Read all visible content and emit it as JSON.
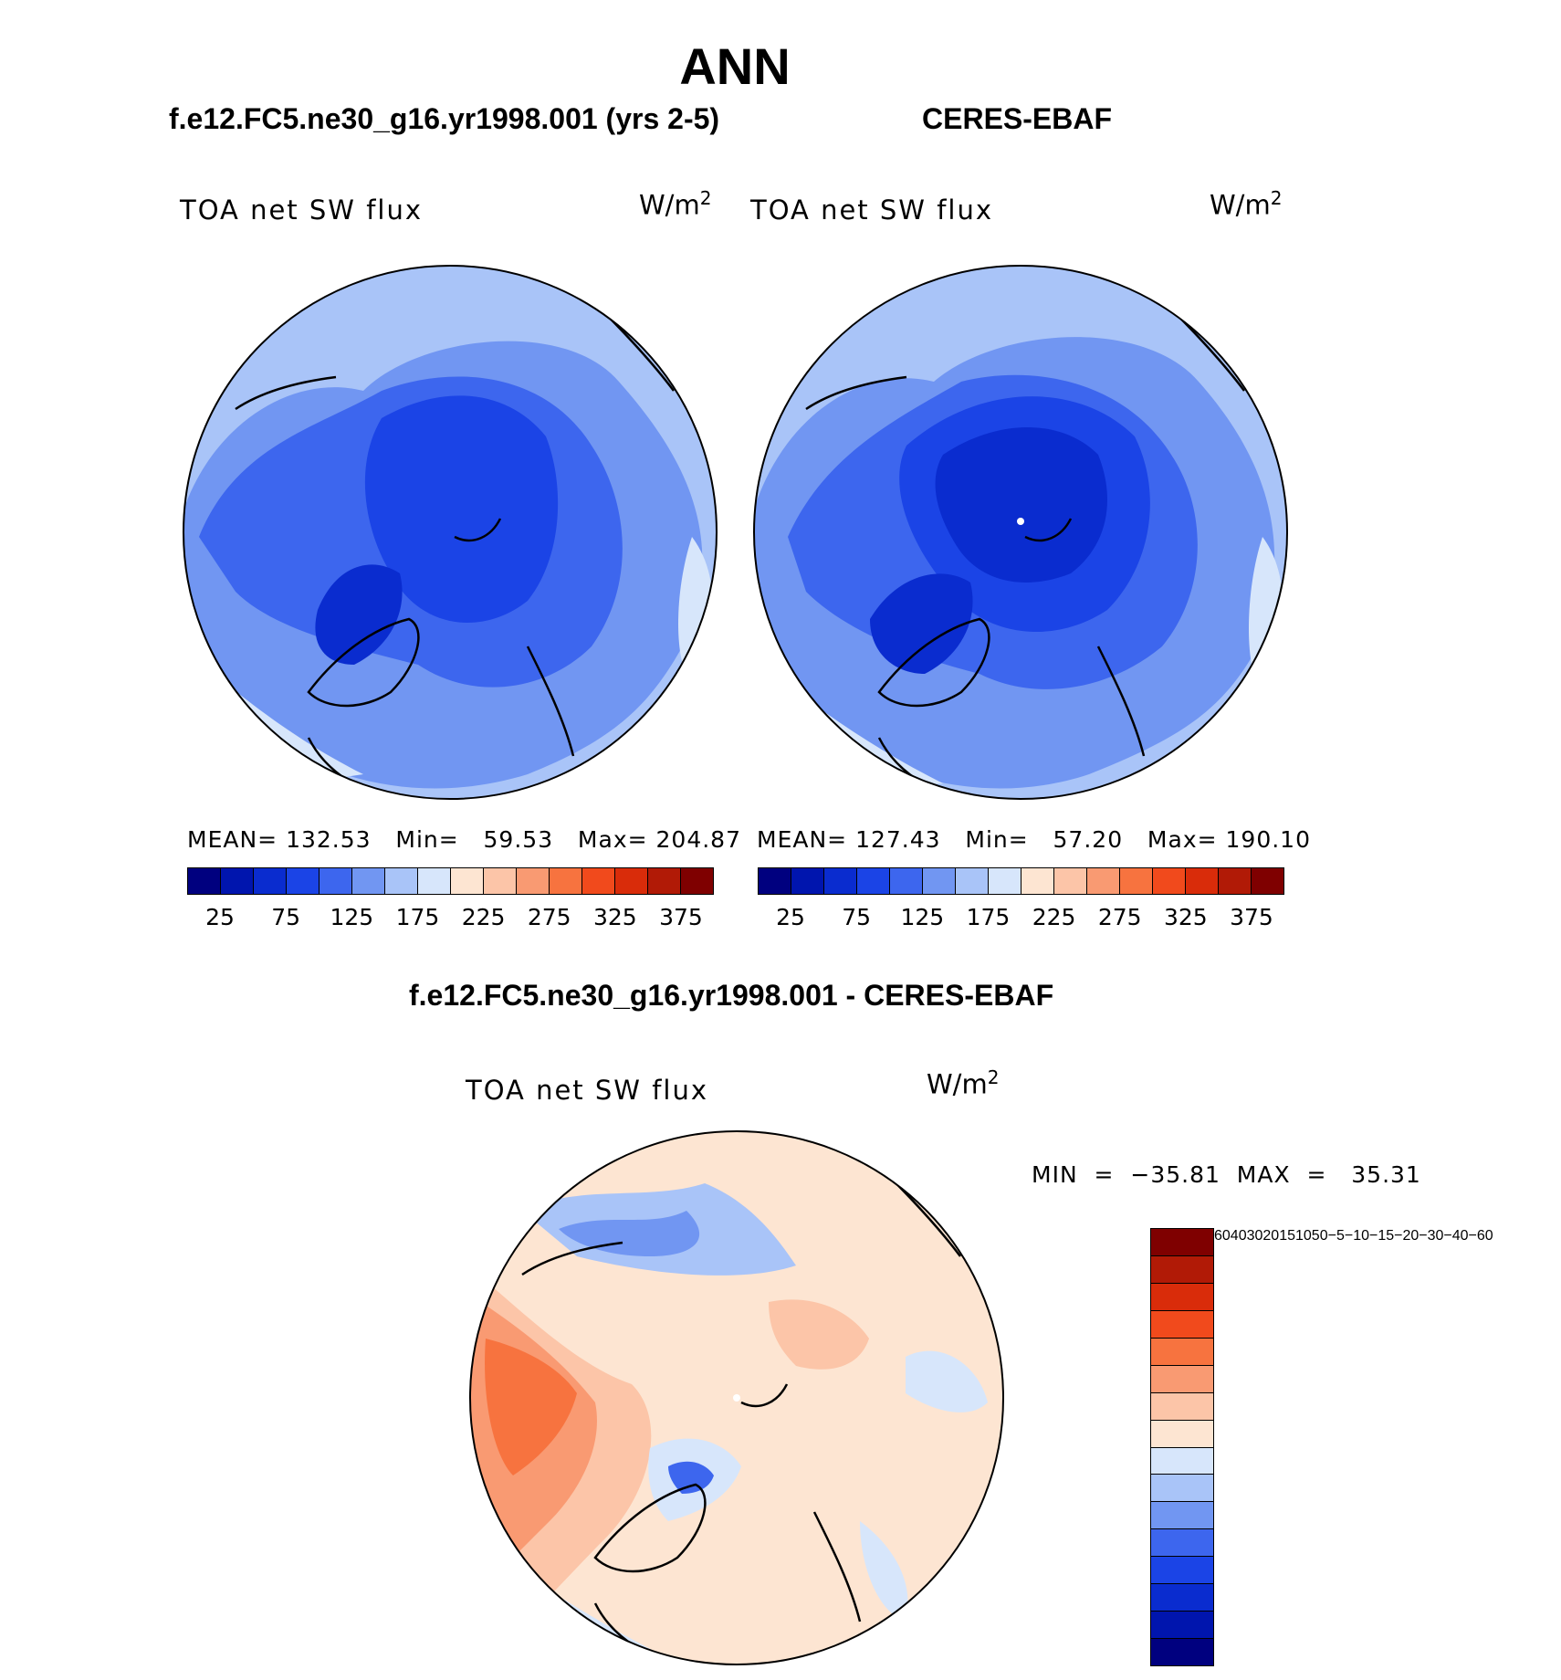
{
  "title": "ANN",
  "left_panel": {
    "subtitle": "f.e12.FC5.ne30_g16.yr1998.001 (yrs 2-5)",
    "var_label": "TOA net SW flux",
    "unit": "W/m",
    "unit_sup": "2",
    "stats": "MEAN= 132.53   Min=   59.53   Max= 204.87"
  },
  "right_panel": {
    "subtitle": "CERES-EBAF",
    "var_label": "TOA net SW flux",
    "unit": "W/m",
    "unit_sup": "2",
    "stats": "MEAN= 127.43   Min=   57.20   Max= 190.10"
  },
  "abs_colorbar": {
    "colors": [
      "#00007f",
      "#0015ae",
      "#0a2ccf",
      "#1b44e6",
      "#3d66ee",
      "#7196f2",
      "#a9c4f8",
      "#d7e6fb",
      "#fde5d2",
      "#fcc5a8",
      "#f99a72",
      "#f7733f",
      "#f14a1c",
      "#d92c0a",
      "#b11a06",
      "#7f0000"
    ],
    "labels": [
      "25",
      "75",
      "125",
      "175",
      "225",
      "275",
      "325",
      "375"
    ]
  },
  "diff_panel": {
    "subtitle": "f.e12.FC5.ne30_g16.yr1998.001 - CERES-EBAF",
    "var_label": "TOA net SW flux",
    "unit": "W/m",
    "unit_sup": "2",
    "stats": "MIN  =  −35.81  MAX  =   35.31"
  },
  "diff_colorbar": {
    "colors": [
      "#7f0000",
      "#b11a06",
      "#d92c0a",
      "#f14a1c",
      "#f7733f",
      "#f99a72",
      "#fcc5a8",
      "#fde5d2",
      "#d7e6fb",
      "#a9c4f8",
      "#7196f2",
      "#3d66ee",
      "#1b44e6",
      "#0a2ccf",
      "#0015ae",
      "#00007f"
    ],
    "labels": [
      "60",
      "40",
      "30",
      "20",
      "15",
      "10",
      "5",
      "0",
      "−5",
      "−10",
      "−15",
      "−20",
      "−30",
      "−40",
      "−60"
    ]
  }
}
